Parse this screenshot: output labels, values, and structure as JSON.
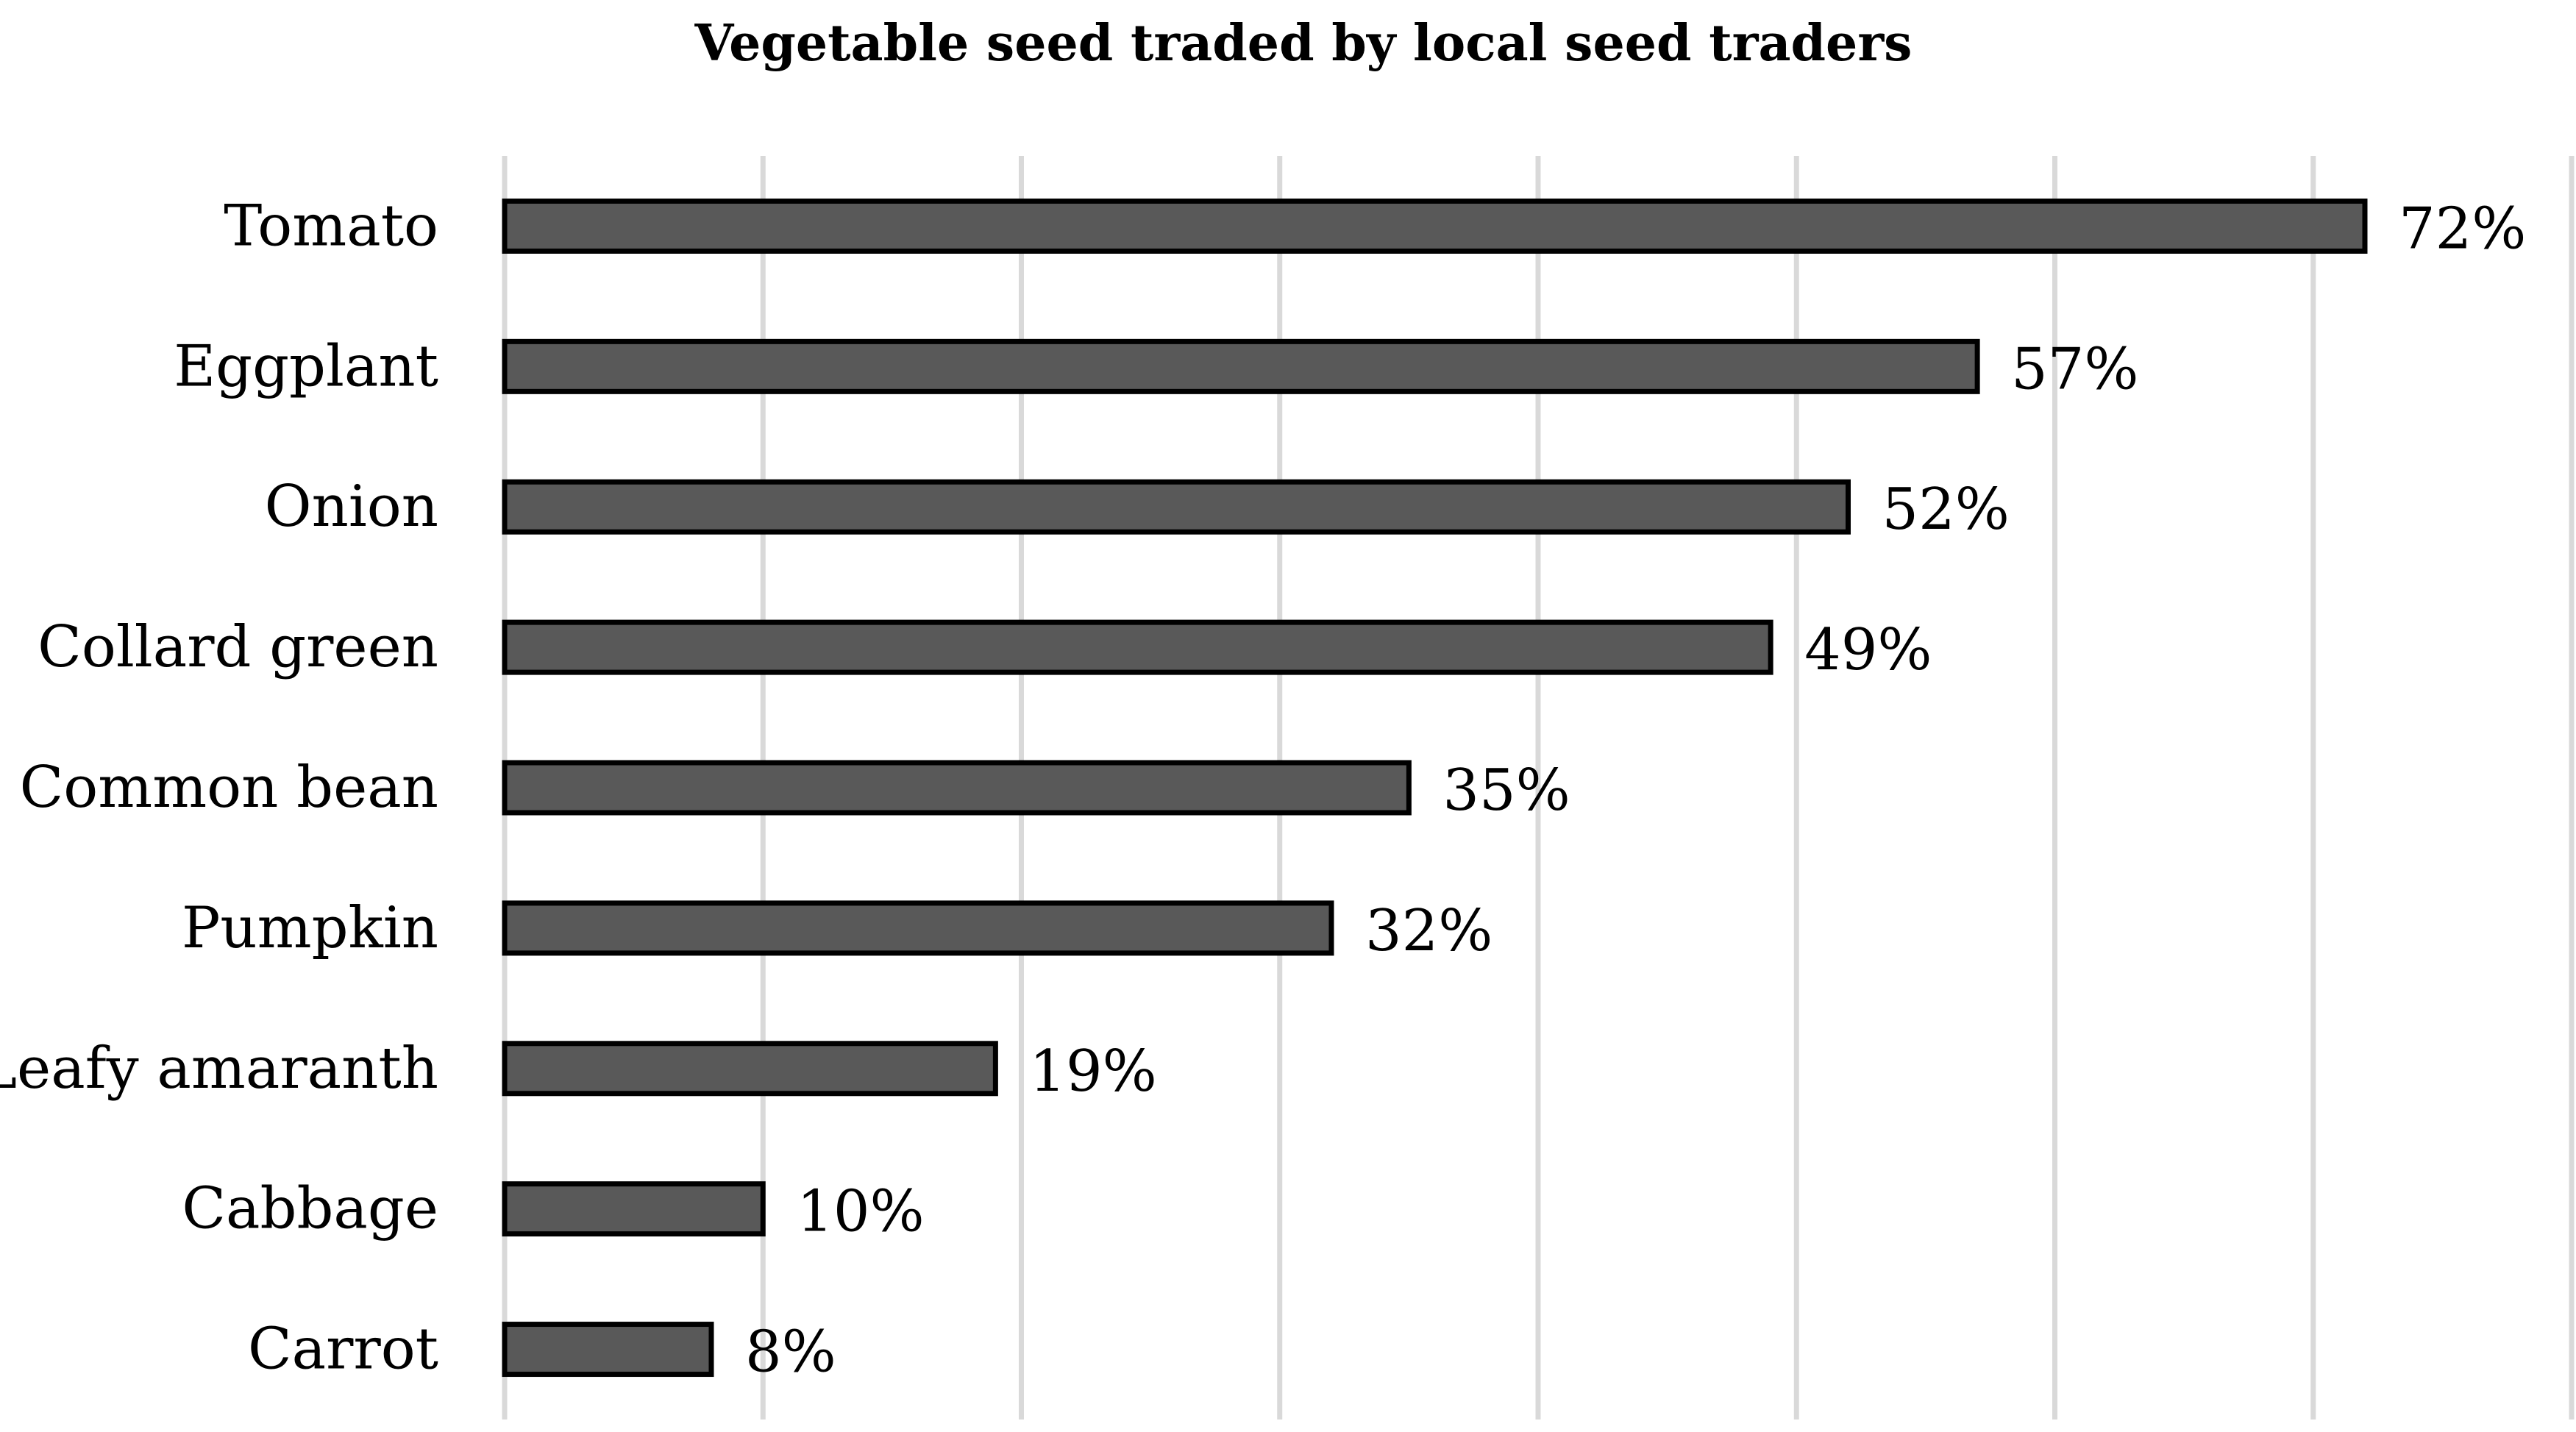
{
  "chart_data": {
    "type": "bar",
    "orientation": "horizontal",
    "title": "Vegetable seed traded by local seed traders",
    "xlabel": "",
    "ylabel": "",
    "categories": [
      "Tomato",
      "Eggplant",
      "Onion",
      "Collard green",
      "Common bean",
      "Pumpkin",
      "Leafy amaranth",
      "Cabbage",
      "Carrot"
    ],
    "values": [
      72,
      57,
      52,
      49,
      35,
      32,
      19,
      10,
      8
    ],
    "value_labels": [
      "72%",
      "57%",
      "52%",
      "49%",
      "35%",
      "32%",
      "19%",
      "10%",
      "8%"
    ],
    "xlim": [
      0,
      80
    ],
    "grid": true,
    "legend": "none",
    "colors": {
      "bar_fill": "#595959",
      "bar_stroke": "#000000",
      "grid": "#d9d9d9"
    }
  }
}
